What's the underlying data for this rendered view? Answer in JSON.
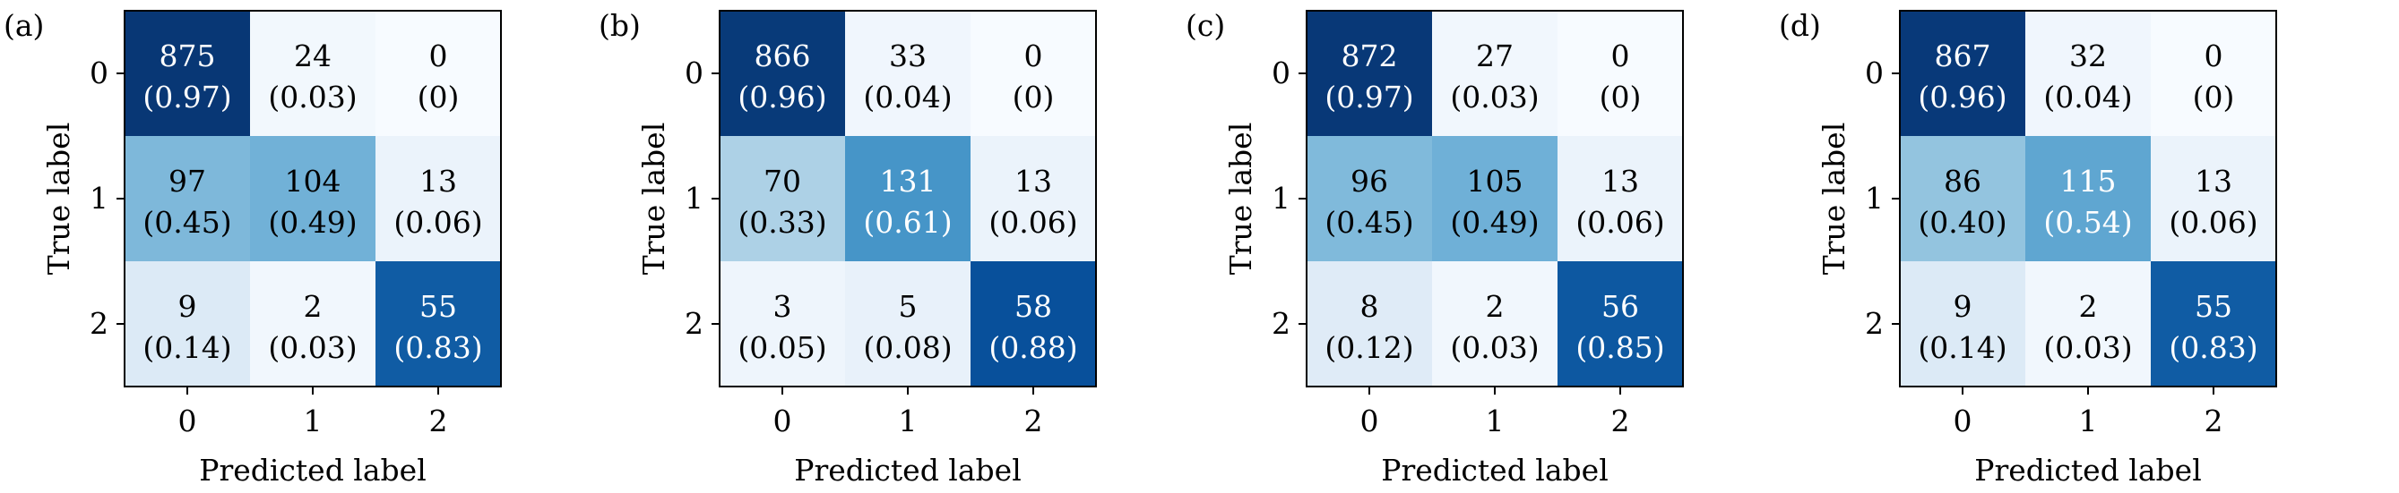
{
  "chart_data": [
    {
      "type": "heatmap",
      "panel_label": "(a)",
      "xlabel": "Predicted label",
      "ylabel": "True label",
      "x_ticks": [
        "0",
        "1",
        "2"
      ],
      "y_ticks": [
        "0",
        "1",
        "2"
      ],
      "counts": [
        [
          875,
          24,
          0
        ],
        [
          97,
          104,
          13
        ],
        [
          9,
          2,
          55
        ]
      ],
      "fractions": [
        [
          "0.97",
          "0.03",
          "0"
        ],
        [
          "0.45",
          "0.49",
          "0.06"
        ],
        [
          "0.14",
          "0.03",
          "0.83"
        ]
      ]
    },
    {
      "type": "heatmap",
      "panel_label": "(b)",
      "xlabel": "Predicted label",
      "ylabel": "True label",
      "x_ticks": [
        "0",
        "1",
        "2"
      ],
      "y_ticks": [
        "0",
        "1",
        "2"
      ],
      "counts": [
        [
          866,
          33,
          0
        ],
        [
          70,
          131,
          13
        ],
        [
          3,
          5,
          58
        ]
      ],
      "fractions": [
        [
          "0.96",
          "0.04",
          "0"
        ],
        [
          "0.33",
          "0.61",
          "0.06"
        ],
        [
          "0.05",
          "0.08",
          "0.88"
        ]
      ]
    },
    {
      "type": "heatmap",
      "panel_label": "(c)",
      "xlabel": "Predicted label",
      "ylabel": "True label",
      "x_ticks": [
        "0",
        "1",
        "2"
      ],
      "y_ticks": [
        "0",
        "1",
        "2"
      ],
      "counts": [
        [
          872,
          27,
          0
        ],
        [
          96,
          105,
          13
        ],
        [
          8,
          2,
          56
        ]
      ],
      "fractions": [
        [
          "0.97",
          "0.03",
          "0"
        ],
        [
          "0.45",
          "0.49",
          "0.06"
        ],
        [
          "0.12",
          "0.03",
          "0.85"
        ]
      ]
    },
    {
      "type": "heatmap",
      "panel_label": "(d)",
      "xlabel": "Predicted label",
      "ylabel": "True label",
      "x_ticks": [
        "0",
        "1",
        "2"
      ],
      "y_ticks": [
        "0",
        "1",
        "2"
      ],
      "counts": [
        [
          867,
          32,
          0
        ],
        [
          86,
          115,
          13
        ],
        [
          9,
          2,
          55
        ]
      ],
      "fractions": [
        [
          "0.96",
          "0.04",
          "0"
        ],
        [
          "0.40",
          "0.54",
          "0.06"
        ],
        [
          "0.14",
          "0.03",
          "0.83"
        ]
      ]
    }
  ],
  "colors": {
    "colormap": "Blues",
    "scale_low": "#f7fbff",
    "scale_high": "#08306b",
    "text_dark": "#000000",
    "text_light": "#ffffff",
    "axis": "#000000"
  }
}
